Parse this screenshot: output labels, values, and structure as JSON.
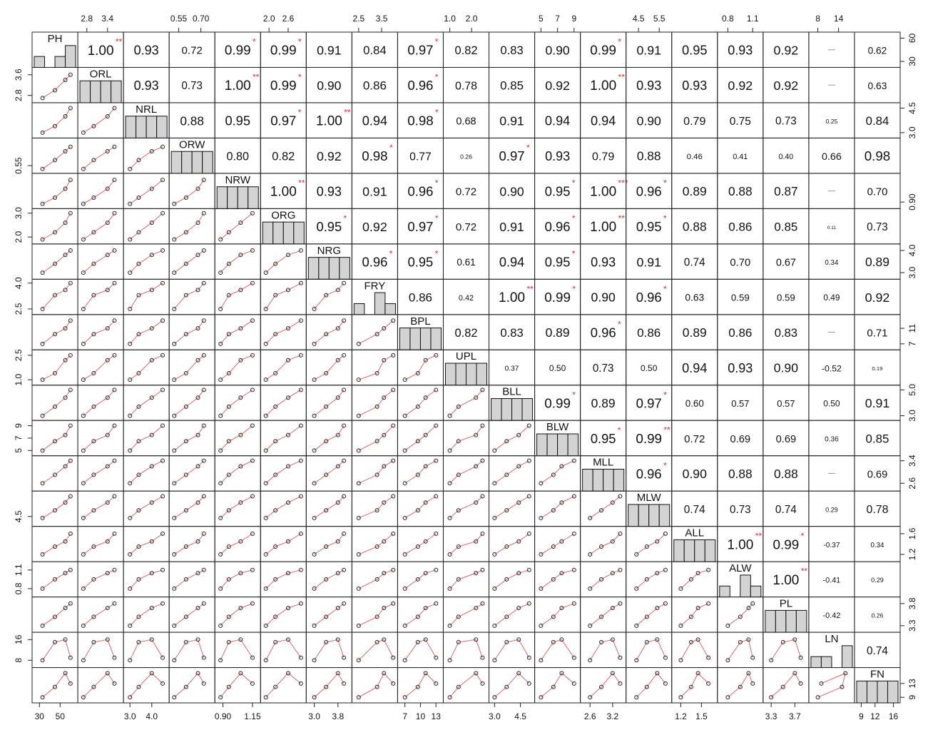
{
  "chart_data": {
    "type": "scatter-matrix",
    "variables": [
      {
        "name": "PH",
        "lim": [
          25,
          65
        ],
        "xticks": [
          30,
          50
        ],
        "yticks": [
          30,
          60
        ],
        "observations": [
          33,
          45,
          55,
          60
        ]
      },
      {
        "name": "ORL",
        "lim": [
          2.6,
          3.8
        ],
        "xticks": [
          2.8,
          3.4
        ],
        "yticks": [
          2.8,
          3.6
        ],
        "observations": [
          2.7,
          3.0,
          3.4,
          3.6
        ]
      },
      {
        "name": "NRL",
        "lim": [
          2.8,
          4.7
        ],
        "xticks": [
          {
            "value": 3,
            "label": "3.0"
          },
          {
            "value": 4,
            "label": "4.0"
          }
        ],
        "yticks": [
          {
            "value": 3,
            "label": "3.0"
          },
          4.5
        ],
        "observations": [
          3.0,
          3.4,
          4.0,
          4.5
        ]
      },
      {
        "name": "ORW",
        "lim": [
          0.5,
          0.78
        ],
        "xticks": [
          0.55,
          {
            "value": 0.7,
            "label": "0.70"
          }
        ],
        "yticks": [
          0.55
        ],
        "observations": [
          0.52,
          0.6,
          0.68,
          0.72
        ]
      },
      {
        "name": "NRW",
        "lim": [
          0.85,
          1.2
        ],
        "xticks": [
          {
            "value": 0.9,
            "label": "0.90"
          },
          1.15
        ],
        "yticks": [
          {
            "value": 0.9,
            "label": "0.90"
          }
        ],
        "observations": [
          0.88,
          0.95,
          1.05,
          1.15
        ]
      },
      {
        "name": "ORG",
        "lim": [
          1.8,
          3.1
        ],
        "xticks": [
          {
            "value": 2,
            "label": "2.0"
          },
          2.6
        ],
        "yticks": [
          {
            "value": 2,
            "label": "2.0"
          },
          {
            "value": 3,
            "label": "3.0"
          }
        ],
        "observations": [
          1.9,
          2.2,
          2.6,
          3.0
        ]
      },
      {
        "name": "NRG",
        "lim": [
          2.8,
          4.2
        ],
        "xticks": [
          {
            "value": 3,
            "label": "3.0"
          },
          3.8
        ],
        "yticks": [
          {
            "value": 3,
            "label": "3.0"
          },
          {
            "value": 4,
            "label": "4.0"
          }
        ],
        "observations": [
          3.0,
          3.4,
          3.8,
          4.0
        ]
      },
      {
        "name": "FRY",
        "lim": [
          2.3,
          4.1
        ],
        "xticks": [
          2.5,
          3.5
        ],
        "yticks": [
          2.5,
          {
            "value": 4,
            "label": "4.0"
          }
        ],
        "observations": [
          2.5,
          3.3,
          3.6,
          4.0
        ]
      },
      {
        "name": "BPL",
        "lim": [
          6,
          14
        ],
        "xticks": [
          7,
          10,
          13
        ],
        "yticks": [
          7,
          11
        ],
        "observations": [
          7,
          9.5,
          11,
          13
        ]
      },
      {
        "name": "UPL",
        "lim": [
          0.8,
          2.7
        ],
        "xticks": [
          {
            "value": 1,
            "label": "1.0"
          },
          {
            "value": 2,
            "label": "2.0"
          }
        ],
        "yticks": [
          {
            "value": 1,
            "label": "1.0"
          },
          2.5
        ],
        "observations": [
          1.0,
          1.4,
          2.2,
          2.5
        ]
      },
      {
        "name": "BLL",
        "lim": [
          2.8,
          5.2
        ],
        "xticks": [
          {
            "value": 3,
            "label": "3.0"
          },
          4.5
        ],
        "yticks": [
          {
            "value": 3,
            "label": "3.0"
          },
          {
            "value": 5,
            "label": "5.0"
          }
        ],
        "observations": [
          3.0,
          3.7,
          4.4,
          5.0
        ]
      },
      {
        "name": "BLW",
        "lim": [
          4.5,
          9.5
        ],
        "xticks": [
          5,
          7,
          9
        ],
        "yticks": [
          5,
          7,
          9
        ],
        "observations": [
          5,
          6.5,
          7.5,
          9
        ]
      },
      {
        "name": "MLL",
        "lim": [
          2.4,
          3.5
        ],
        "xticks": [
          2.6,
          3.2
        ],
        "yticks": [
          2.6,
          3.4
        ],
        "observations": [
          2.6,
          2.9,
          3.2,
          3.4
        ]
      },
      {
        "name": "MLW",
        "lim": [
          4,
          6
        ],
        "xticks": [
          4.5,
          5.5
        ],
        "yticks": [
          4.5
        ],
        "observations": [
          4.4,
          4.9,
          5.4,
          5.8
        ]
      },
      {
        "name": "ALL",
        "lim": [
          1.1,
          1.7
        ],
        "xticks": [
          1.2,
          1.5
        ],
        "yticks": [
          1.2,
          1.6
        ],
        "observations": [
          1.2,
          1.35,
          1.45,
          1.6
        ]
      },
      {
        "name": "ALW",
        "lim": [
          0.7,
          1.2
        ],
        "xticks": [
          0.8,
          1.1
        ],
        "yticks": [
          0.8,
          1.1
        ],
        "observations": [
          0.8,
          0.95,
          1.05,
          1.1
        ]
      },
      {
        "name": "PL",
        "lim": [
          3.2,
          3.9
        ],
        "xticks": [
          3.3,
          3.7
        ],
        "yticks": [
          3.3,
          3.8
        ],
        "observations": [
          3.3,
          3.5,
          3.7,
          3.8
        ]
      },
      {
        "name": "LN",
        "lim": [
          6,
          18
        ],
        "xticks": [
          8,
          14
        ],
        "yticks": [
          8,
          16
        ],
        "observations": [
          8,
          15,
          16,
          9
        ]
      },
      {
        "name": "FN",
        "lim": [
          8,
          17
        ],
        "xticks": [
          9,
          12,
          16
        ],
        "yticks": [
          9,
          13
        ],
        "observations": [
          9,
          12,
          16,
          13
        ]
      }
    ],
    "correlations": [
      [
        1,
        0.93,
        0.72,
        0.99,
        0.99,
        0.91,
        0.84,
        0.97,
        0.82,
        0.83,
        0.9,
        0.99,
        0.91,
        0.95,
        0.93,
        0.92,
        null,
        0.62
      ],
      [
        0.93,
        0.73,
        1,
        0.99,
        0.9,
        0.86,
        0.96,
        0.78,
        0.85,
        0.92,
        1,
        0.93,
        0.93,
        0.92,
        0.92,
        null,
        0.63
      ],
      [
        0.88,
        0.95,
        0.97,
        1,
        0.94,
        0.98,
        0.68,
        0.91,
        0.94,
        0.94,
        0.9,
        0.79,
        0.75,
        0.73,
        0.25,
        0.84
      ],
      [
        0.8,
        0.82,
        0.92,
        0.98,
        0.77,
        0.26,
        0.97,
        0.93,
        0.79,
        0.88,
        0.46,
        0.41,
        0.4,
        0.66,
        0.98
      ],
      [
        1,
        0.93,
        0.91,
        0.96,
        0.72,
        0.9,
        0.95,
        1,
        0.96,
        0.89,
        0.88,
        0.87,
        null,
        0.7
      ],
      [
        0.95,
        0.92,
        0.97,
        0.72,
        0.91,
        0.96,
        1,
        0.95,
        0.88,
        0.86,
        0.85,
        0.11,
        0.73
      ],
      [
        0.96,
        0.95,
        0.61,
        0.94,
        0.95,
        0.93,
        0.91,
        0.74,
        0.7,
        0.67,
        0.34,
        0.89
      ],
      [
        0.86,
        0.42,
        1,
        0.99,
        0.9,
        0.96,
        0.63,
        0.59,
        0.59,
        0.49,
        0.92
      ],
      [
        0.82,
        0.83,
        0.89,
        0.96,
        0.86,
        0.89,
        0.86,
        0.83,
        null,
        0.71
      ],
      [
        0.37,
        0.5,
        0.73,
        0.5,
        0.94,
        0.93,
        0.9,
        -0.52,
        0.19
      ],
      [
        0.99,
        0.89,
        0.97,
        0.6,
        0.57,
        0.57,
        0.5,
        0.91
      ],
      [
        0.95,
        0.99,
        0.72,
        0.69,
        0.69,
        0.36,
        0.85
      ],
      [
        0.96,
        0.9,
        0.88,
        0.88,
        null,
        0.69
      ],
      [
        0.74,
        0.73,
        0.74,
        0.29,
        0.78
      ],
      [
        1,
        0.99,
        -0.37,
        0.34
      ],
      [
        1,
        -0.41,
        0.29
      ],
      [
        -0.42,
        0.26
      ],
      [
        0.74
      ]
    ],
    "correlation_labels": [
      [
        "1.00",
        "0.93",
        "0.72",
        "0.99",
        "0.99",
        "0.91",
        "0.84",
        "0.97",
        "0.82",
        "0.83",
        "0.90",
        "0.99",
        "0.91",
        "0.95",
        "0.93",
        "0.92",
        null,
        "0.62"
      ],
      [
        "0.93",
        "0.73",
        "1.00",
        "0.99",
        "0.90",
        "0.86",
        "0.96",
        "0.78",
        "0.85",
        "0.92",
        "1.00",
        "0.93",
        "0.93",
        "0.92",
        "0.92",
        null,
        "0.63"
      ],
      [
        "0.88",
        "0.95",
        "0.97",
        "1.00",
        "0.94",
        "0.98",
        "0.68",
        "0.91",
        "0.94",
        "0.94",
        "0.90",
        "0.79",
        "0.75",
        "0.73",
        "0.25",
        "0.84"
      ],
      [
        "0.80",
        "0.82",
        "0.92",
        "0.98",
        "0.77",
        "0.26",
        "0.97",
        "0.93",
        "0.79",
        "0.88",
        "0.46",
        "0.41",
        "0.40",
        "0.66",
        "0.98"
      ],
      [
        "1.00",
        "0.93",
        "0.91",
        "0.96",
        "0.72",
        "0.90",
        "0.95",
        "1.00",
        "0.96",
        "0.89",
        "0.88",
        "0.87",
        null,
        "0.70"
      ],
      [
        "0.95",
        "0.92",
        "0.97",
        "0.72",
        "0.91",
        "0.96",
        "1.00",
        "0.95",
        "0.88",
        "0.86",
        "0.85",
        "0.11",
        "0.73"
      ],
      [
        "0.96",
        "0.95",
        "0.61",
        "0.94",
        "0.95",
        "0.93",
        "0.91",
        "0.74",
        "0.70",
        "0.67",
        "0.34",
        "0.89"
      ],
      [
        "0.86",
        "0.42",
        "1.00",
        "0.99",
        "0.90",
        "0.96",
        "0.63",
        "0.59",
        "0.59",
        "0.49",
        "0.92"
      ],
      [
        "0.82",
        "0.83",
        "0.89",
        "0.96",
        "0.86",
        "0.89",
        "0.86",
        "0.83",
        null,
        "0.71"
      ],
      [
        "0.37",
        "0.50",
        "0.73",
        "0.50",
        "0.94",
        "0.93",
        "0.90",
        "-0.52",
        "0.19"
      ],
      [
        "0.99",
        "0.89",
        "0.97",
        "0.60",
        "0.57",
        "0.57",
        "0.50",
        "0.91"
      ],
      [
        "0.95",
        "0.99",
        "0.72",
        "0.69",
        "0.69",
        "0.36",
        "0.85"
      ],
      [
        "0.96",
        "0.90",
        "0.88",
        "0.88",
        null,
        "0.69"
      ],
      [
        "0.74",
        "0.73",
        "0.74",
        "0.29",
        "0.78"
      ],
      [
        "1.00",
        "0.99",
        "-0.37",
        "0.34"
      ],
      [
        "1.00",
        "-0.41",
        "0.29"
      ],
      [
        "-0.42",
        "0.26"
      ],
      [
        "0.74"
      ]
    ],
    "stars": [
      [
        "**",
        null,
        null,
        "*",
        "*",
        null,
        null,
        "*",
        null,
        null,
        null,
        "*",
        null,
        null,
        null,
        null,
        null,
        null
      ],
      [
        null,
        null,
        "**",
        "*",
        null,
        null,
        "*",
        null,
        null,
        null,
        "**",
        null,
        null,
        null,
        null,
        null,
        null
      ],
      [
        null,
        null,
        "*",
        "**",
        null,
        "*",
        null,
        null,
        null,
        null,
        null,
        null,
        null,
        null,
        null,
        null
      ],
      [
        null,
        null,
        null,
        "*",
        null,
        null,
        "*",
        null,
        null,
        null,
        null,
        null,
        null,
        null,
        null
      ],
      [
        "**",
        null,
        null,
        "*",
        null,
        null,
        "*",
        "***",
        "*",
        null,
        null,
        null,
        null,
        null
      ],
      [
        "*",
        null,
        "*",
        null,
        null,
        "*",
        "**",
        "*",
        null,
        null,
        null,
        null,
        null
      ],
      [
        "*",
        "*",
        null,
        null,
        "*",
        null,
        null,
        null,
        null,
        null,
        null,
        null
      ],
      [
        null,
        null,
        "**",
        "*",
        null,
        "*",
        null,
        null,
        null,
        null,
        null
      ],
      [
        null,
        null,
        null,
        "*",
        null,
        null,
        null,
        null,
        null,
        null
      ],
      [
        null,
        null,
        null,
        null,
        null,
        null,
        null,
        null,
        null
      ],
      [
        "*",
        null,
        "*",
        null,
        null,
        null,
        null,
        null
      ],
      [
        "*",
        "**",
        null,
        null,
        null,
        null,
        null
      ],
      [
        "*",
        null,
        null,
        null,
        null,
        null
      ],
      [
        null,
        null,
        null,
        null,
        null
      ],
      [
        "**",
        "*",
        null,
        null
      ],
      [
        "**",
        null,
        null
      ],
      [
        null,
        null
      ],
      [
        null
      ]
    ]
  }
}
